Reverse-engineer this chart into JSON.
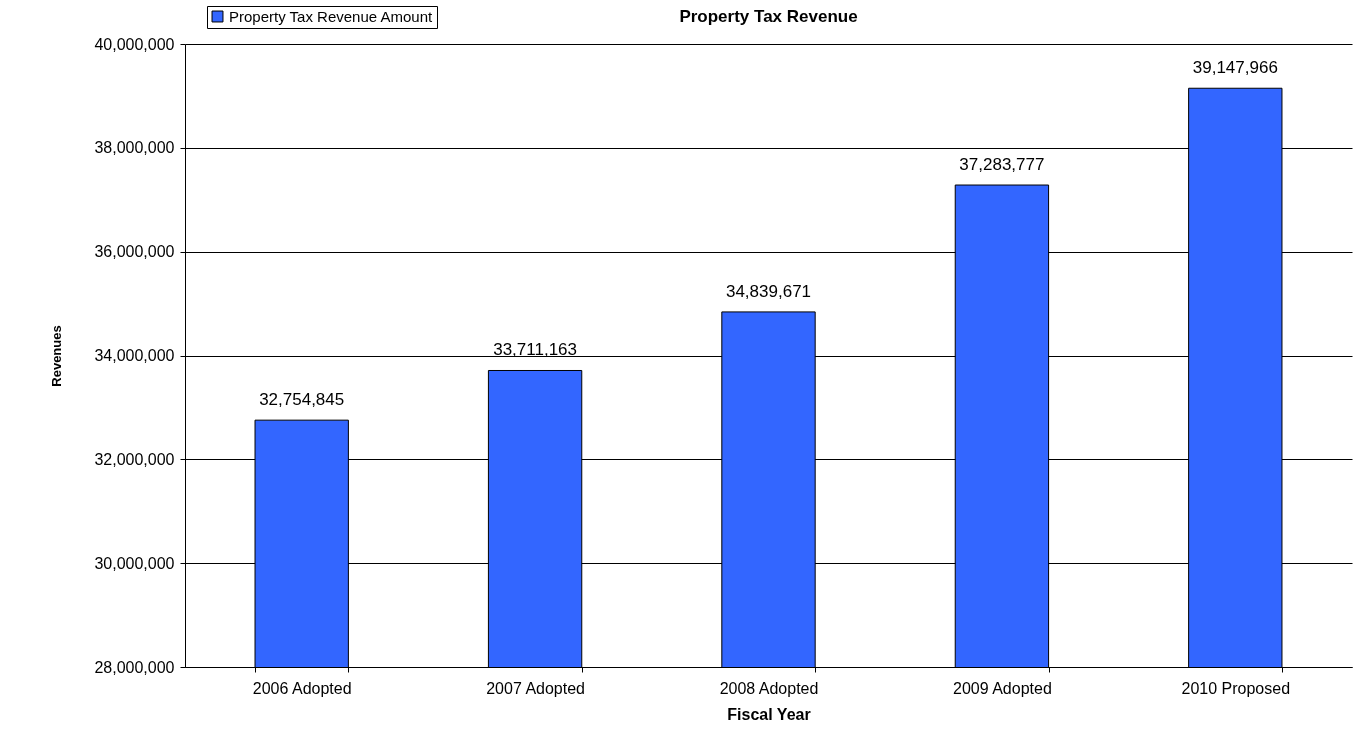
{
  "chart_data": {
    "type": "bar",
    "title": "Property Tax Revenue",
    "xlabel": "Fiscal Year",
    "ylabel": "Revenues",
    "categories": [
      "2006 Adopted",
      "2007 Adopted",
      "2008 Adopted",
      "2009 Adopted",
      "2010 Proposed"
    ],
    "series": [
      {
        "name": "Property Tax Revenue Amount",
        "color": "#3366ff",
        "values": [
          32754845,
          33711163,
          34839671,
          37283777,
          39147966
        ]
      }
    ],
    "ylim": [
      28000000,
      40000000
    ],
    "yticks": [
      {
        "value": 28000000,
        "label": "28,000,000"
      },
      {
        "value": 30000000,
        "label": "30,000,000"
      },
      {
        "value": 32000000,
        "label": "32,000,000"
      },
      {
        "value": 34000000,
        "label": "34,000,000"
      },
      {
        "value": 36000000,
        "label": "36,000,000"
      },
      {
        "value": 38000000,
        "label": "38,000,000"
      },
      {
        "value": 40000000,
        "label": "40,000,000"
      }
    ],
    "value_labels": [
      "32,754,845",
      "33,711,163",
      "34,839,671",
      "37,283,777",
      "39,147,966"
    ],
    "grid": "y",
    "legend": "top left"
  }
}
